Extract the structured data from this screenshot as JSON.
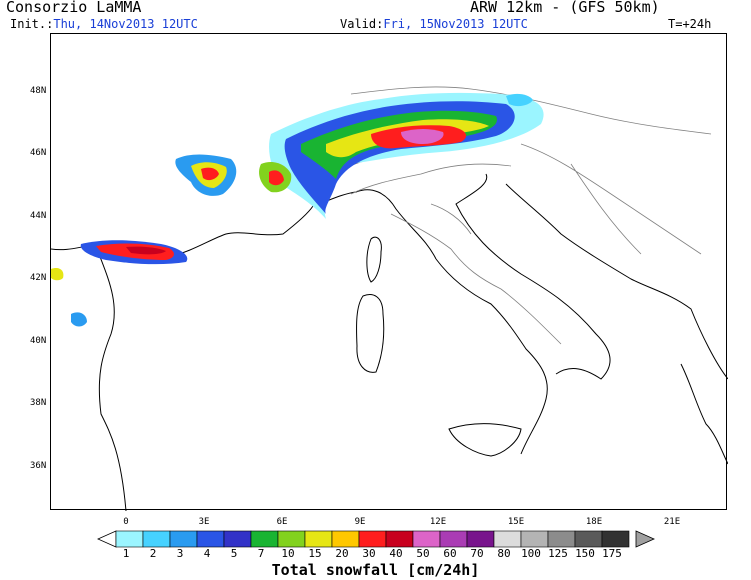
{
  "header": {
    "producer": "Consorzio LaMMA",
    "model": "ARW 12km - (GFS 50km)",
    "init_label": "Init.:",
    "init_value": "Thu, 14Nov2013 12UTC",
    "valid_label": "Valid:",
    "valid_value": "Fri, 15Nov2013 12UTC",
    "forecast_step": "T=+24h"
  },
  "map": {
    "lat_ticks": [
      "48N",
      "46N",
      "44N",
      "42N",
      "40N",
      "38N",
      "36N"
    ],
    "lon_ticks": [
      "0",
      "3E",
      "6E",
      "9E",
      "12E",
      "15E",
      "18E",
      "21E"
    ],
    "coastline_color": "#000000",
    "border_color": "#808080"
  },
  "colorbar": {
    "title": "Total snowfall [cm/24h]",
    "labels": [
      "1",
      "2",
      "3",
      "4",
      "5",
      "7",
      "10",
      "15",
      "20",
      "30",
      "40",
      "50",
      "60",
      "70",
      "80",
      "100",
      "125",
      "150",
      "175"
    ],
    "colors": [
      "#9bf5ff",
      "#46d2ff",
      "#2a9bf0",
      "#2a55e6",
      "#3232c8",
      "#19b432",
      "#82d21e",
      "#e6e614",
      "#ffc800",
      "#ff1e1e",
      "#c8001e",
      "#dc64c8",
      "#aa3cb4",
      "#78148c",
      "#dcdcdc",
      "#b4b4b4",
      "#8c8c8c",
      "#5a5a5a",
      "#323232"
    ]
  }
}
